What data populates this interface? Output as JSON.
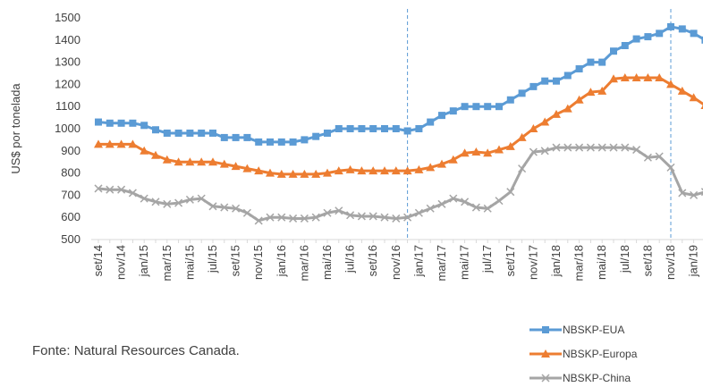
{
  "chart_data": {
    "type": "line",
    "y_label": "US$ por tonelada",
    "source": "Fonte: Natural Resources Canada.",
    "categories": [
      "set/14",
      null,
      "nov/14",
      null,
      "jan/15",
      null,
      "mar/15",
      null,
      "mai/15",
      null,
      "jul/15",
      null,
      "set/15",
      null,
      "nov/15",
      null,
      "jan/16",
      null,
      "mar/16",
      null,
      "mai/16",
      null,
      "jul/16",
      null,
      "set/16",
      null,
      "nov/16",
      null,
      "jan/17",
      null,
      "mar/17",
      null,
      "mai/17",
      null,
      "jul/17",
      null,
      "set/17",
      null,
      "nov/17",
      null,
      "jan/18",
      null,
      "mar/18",
      null,
      "mai/18",
      null,
      "jul/18",
      null,
      "set/18",
      null,
      "nov/18",
      null,
      "jan/19",
      null
    ],
    "series": [
      {
        "name": "NBSKP-EUA",
        "color": "#5b9bd5",
        "marker": "square",
        "values": [
          1030,
          1025,
          1025,
          1025,
          1015,
          995,
          980,
          980,
          980,
          980,
          980,
          960,
          960,
          960,
          940,
          940,
          940,
          940,
          950,
          965,
          980,
          1000,
          1000,
          1000,
          1000,
          1000,
          1000,
          990,
          1000,
          1030,
          1060,
          1080,
          1100,
          1100,
          1100,
          1100,
          1130,
          1160,
          1190,
          1215,
          1215,
          1240,
          1270,
          1300,
          1300,
          1350,
          1375,
          1405,
          1415,
          1430,
          1460,
          1450,
          1430,
          1400
        ]
      },
      {
        "name": "NBSKP-Europa",
        "color": "#ed7d31",
        "marker": "triangle",
        "values": [
          930,
          930,
          930,
          930,
          900,
          880,
          860,
          850,
          850,
          850,
          850,
          840,
          830,
          820,
          810,
          800,
          795,
          795,
          795,
          795,
          800,
          810,
          815,
          810,
          810,
          810,
          810,
          810,
          815,
          825,
          840,
          860,
          890,
          895,
          890,
          905,
          920,
          960,
          1000,
          1030,
          1065,
          1090,
          1130,
          1165,
          1170,
          1225,
          1230,
          1230,
          1230,
          1230,
          1200,
          1170,
          1140,
          1105
        ]
      },
      {
        "name": "NBSKP-China",
        "color": "#a5a5a5",
        "marker": "x",
        "values": [
          730,
          725,
          725,
          710,
          685,
          670,
          660,
          665,
          680,
          685,
          650,
          645,
          640,
          620,
          585,
          600,
          600,
          595,
          595,
          600,
          620,
          630,
          610,
          605,
          605,
          600,
          595,
          600,
          620,
          640,
          660,
          685,
          670,
          645,
          640,
          675,
          715,
          820,
          895,
          900,
          915,
          915,
          915,
          915,
          915,
          915,
          915,
          905,
          870,
          875,
          825,
          710,
          700,
          715
        ]
      }
    ],
    "ylim": [
      500,
      1500
    ],
    "yticks": [
      500,
      600,
      700,
      800,
      900,
      1000,
      1100,
      1200,
      1300,
      1400,
      1500
    ]
  }
}
